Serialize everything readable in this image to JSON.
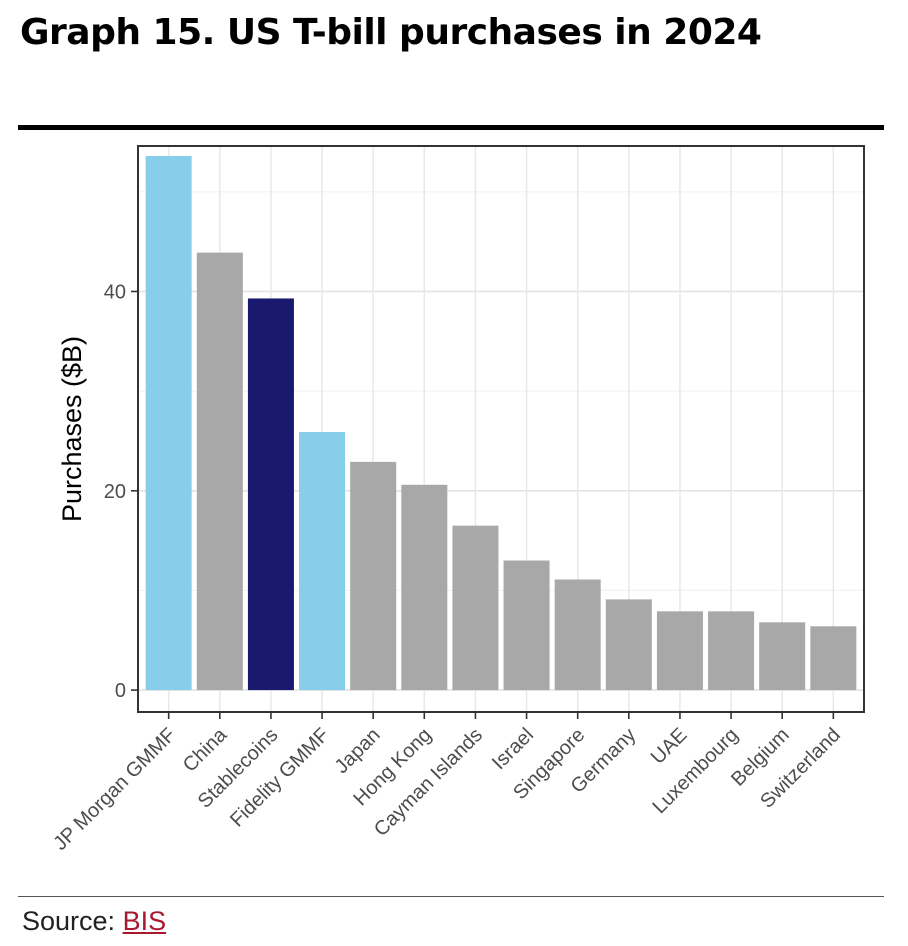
{
  "title": "Graph 15. US T-bill purchases in 2024",
  "source": {
    "label": "Source:",
    "link_text": "BIS"
  },
  "colors": {
    "jp_morgan_gmmf": "#87ceeb",
    "china": "#a8a8a8",
    "stablecoins": "#191970",
    "fidelity_gmmf": "#87ceeb",
    "other": "#a8a8a8",
    "source_link": "#a6192e"
  },
  "chart_data": {
    "type": "bar",
    "title": "",
    "xlabel": "",
    "ylabel": "Purchases ($B)",
    "ylim": [
      -2.2,
      54.6
    ],
    "yticks": [
      0,
      20,
      40
    ],
    "grid": true,
    "categories": [
      "JP Morgan GMMF",
      "China",
      "Stablecoins",
      "Fidelity GMMF",
      "Japan",
      "Hong Kong",
      "Cayman Islands",
      "Israel",
      "Singapore",
      "Germany",
      "UAE",
      "Luxembourg",
      "Belgium",
      "Switzerland"
    ],
    "values": [
      53.6,
      43.9,
      39.3,
      25.9,
      22.9,
      20.6,
      16.5,
      13.0,
      11.1,
      9.1,
      7.9,
      7.9,
      6.8,
      6.4
    ],
    "bar_colors": [
      "#87ceeb",
      "#a8a8a8",
      "#191970",
      "#87ceeb",
      "#a8a8a8",
      "#a8a8a8",
      "#a8a8a8",
      "#a8a8a8",
      "#a8a8a8",
      "#a8a8a8",
      "#a8a8a8",
      "#a8a8a8",
      "#a8a8a8",
      "#a8a8a8"
    ]
  }
}
